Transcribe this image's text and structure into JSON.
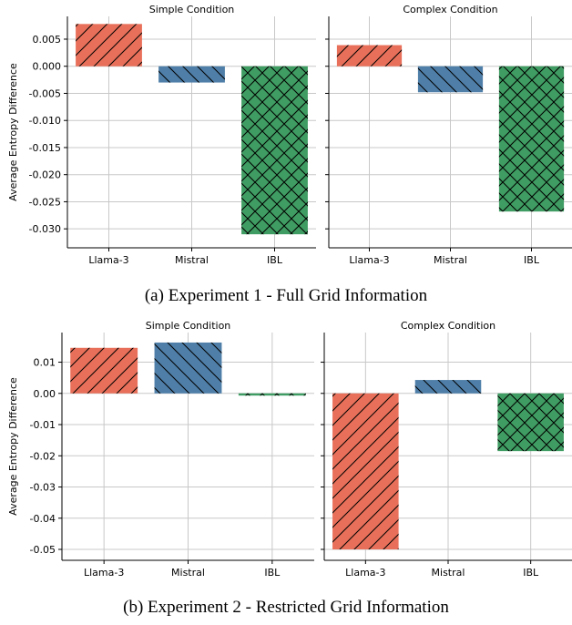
{
  "chart_data": [
    {
      "type": "bar",
      "title": "Simple Condition",
      "ylabel": "Average Entropy Difference",
      "categories": [
        "Llama-3",
        "Mistral",
        "IBL"
      ],
      "values": [
        0.0078,
        -0.003,
        -0.031
      ],
      "ylim": [
        -0.0335,
        0.0092
      ],
      "yticks": [
        0.005,
        0.0,
        -0.005,
        -0.01,
        -0.015,
        -0.02,
        -0.025,
        -0.03
      ],
      "ytick_labels": [
        "0.005",
        "0.000",
        "-0.005",
        "-0.010",
        "-0.015",
        "-0.020",
        "-0.025",
        "-0.030"
      ],
      "grid": true
    },
    {
      "type": "bar",
      "title": "Complex Condition",
      "categories": [
        "Llama-3",
        "Mistral",
        "IBL"
      ],
      "values": [
        0.0039,
        -0.0048,
        -0.0268
      ],
      "ylim": [
        -0.0335,
        0.0092
      ],
      "yticks": [
        0.005,
        0.0,
        -0.005,
        -0.01,
        -0.015,
        -0.02,
        -0.025,
        -0.03
      ],
      "grid": true
    },
    {
      "type": "bar",
      "title": "Simple Condition",
      "ylabel": "Average Entropy Difference",
      "categories": [
        "Llama-3",
        "Mistral",
        "IBL"
      ],
      "values": [
        0.0146,
        0.0163,
        -0.0007
      ],
      "ylim": [
        -0.0535,
        0.0195
      ],
      "yticks": [
        0.01,
        0.0,
        -0.01,
        -0.02,
        -0.03,
        -0.04,
        -0.05
      ],
      "ytick_labels": [
        "0.01",
        "0.00",
        "-0.01",
        "-0.02",
        "-0.03",
        "-0.04",
        "-0.05"
      ],
      "grid": true
    },
    {
      "type": "bar",
      "title": "Complex Condition",
      "categories": [
        "Llama-3",
        "Mistral",
        "IBL"
      ],
      "values": [
        -0.05,
        0.0043,
        -0.0185
      ],
      "ylim": [
        -0.0535,
        0.0195
      ],
      "yticks": [
        0.01,
        0.0,
        -0.01,
        -0.02,
        -0.03,
        -0.04,
        -0.05
      ],
      "grid": true
    }
  ],
  "captions": {
    "a": "(a) Experiment 1 - Full Grid Information",
    "b": "(b) Experiment 2 - Restricted Grid Information"
  },
  "colors": {
    "Llama-3": "#e8705a",
    "Mistral": "#4f7fa8",
    "IBL": "#3f9c62",
    "grid": "#c8c8c8",
    "hatch": "#000000"
  },
  "hatches": {
    "Llama-3": "forward-slash",
    "Mistral": "back-slash",
    "IBL": "cross"
  }
}
